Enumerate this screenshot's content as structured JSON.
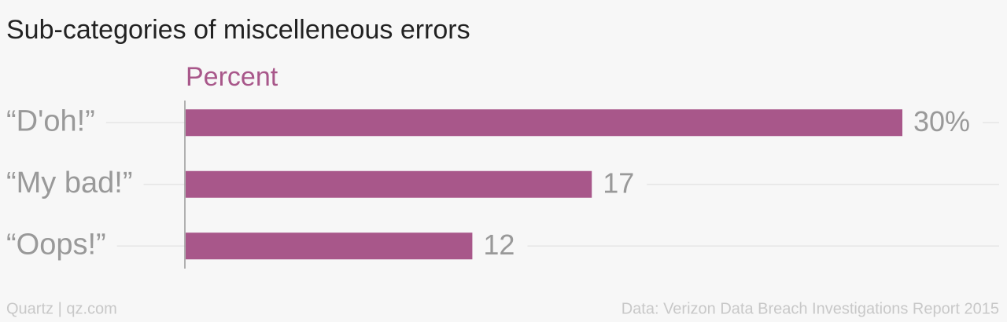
{
  "chart_data": {
    "type": "bar",
    "orientation": "horizontal",
    "title": "Sub-categories of miscelleneous errors",
    "x_label": "Percent",
    "categories": [
      "“D'oh!”",
      "“My bad!”",
      "“Oops!”"
    ],
    "values": [
      30,
      17,
      12
    ],
    "value_labels": [
      "30%",
      "17",
      "12"
    ],
    "color": "#a8578a",
    "grid": true,
    "source": "Data: Verizon Data Breach Investigations Report 2015",
    "credit": "Quartz | qz.com"
  }
}
